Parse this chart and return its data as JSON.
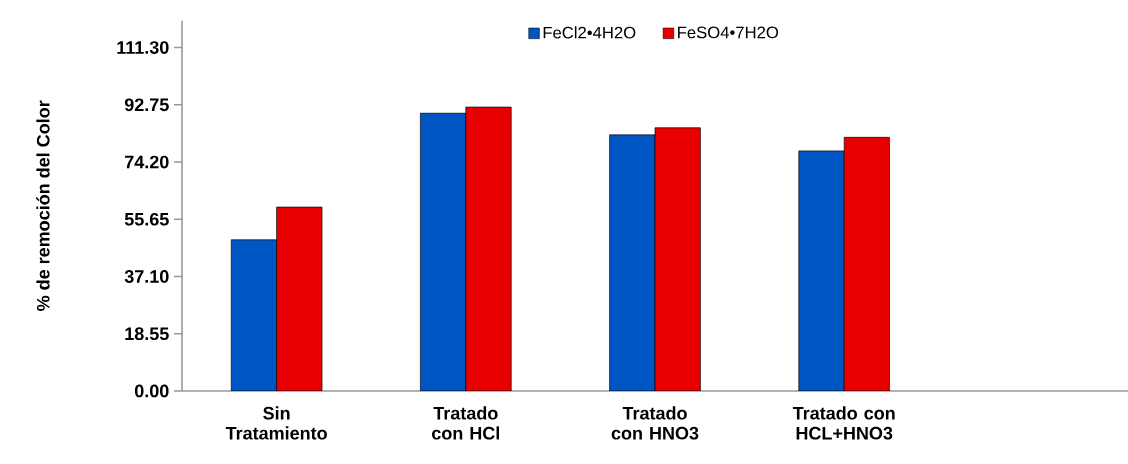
{
  "chart_data": {
    "type": "bar",
    "ylabel": "% de remoción del Color",
    "categories": [
      "Sin Tratamiento",
      "Tratado con HCl",
      "Tratado con HNO3",
      "Tratado con HCL+HNO3",
      null
    ],
    "series": [
      {
        "name": "FeCl2•4H2O",
        "color": "#0055c4",
        "values": [
          49.0,
          90.1,
          83.0,
          77.8,
          null
        ]
      },
      {
        "name": "FeSO4•7H2O",
        "color": "#e80000",
        "values": [
          59.6,
          92.0,
          85.3,
          82.2,
          null
        ]
      }
    ],
    "ylim": [
      0,
      120
    ],
    "yticks": [
      {
        "value": 0,
        "label": "0.00"
      },
      {
        "value": 18.55,
        "label": "18.55"
      },
      {
        "value": 37.1,
        "label": "37.10"
      },
      {
        "value": 55.65,
        "label": "55.65"
      },
      {
        "value": 74.2,
        "label": "74.20"
      },
      {
        "value": 92.75,
        "label": "92.75"
      },
      {
        "value": 111.3,
        "label": "111.30"
      }
    ],
    "grid": false,
    "legend": "top"
  }
}
